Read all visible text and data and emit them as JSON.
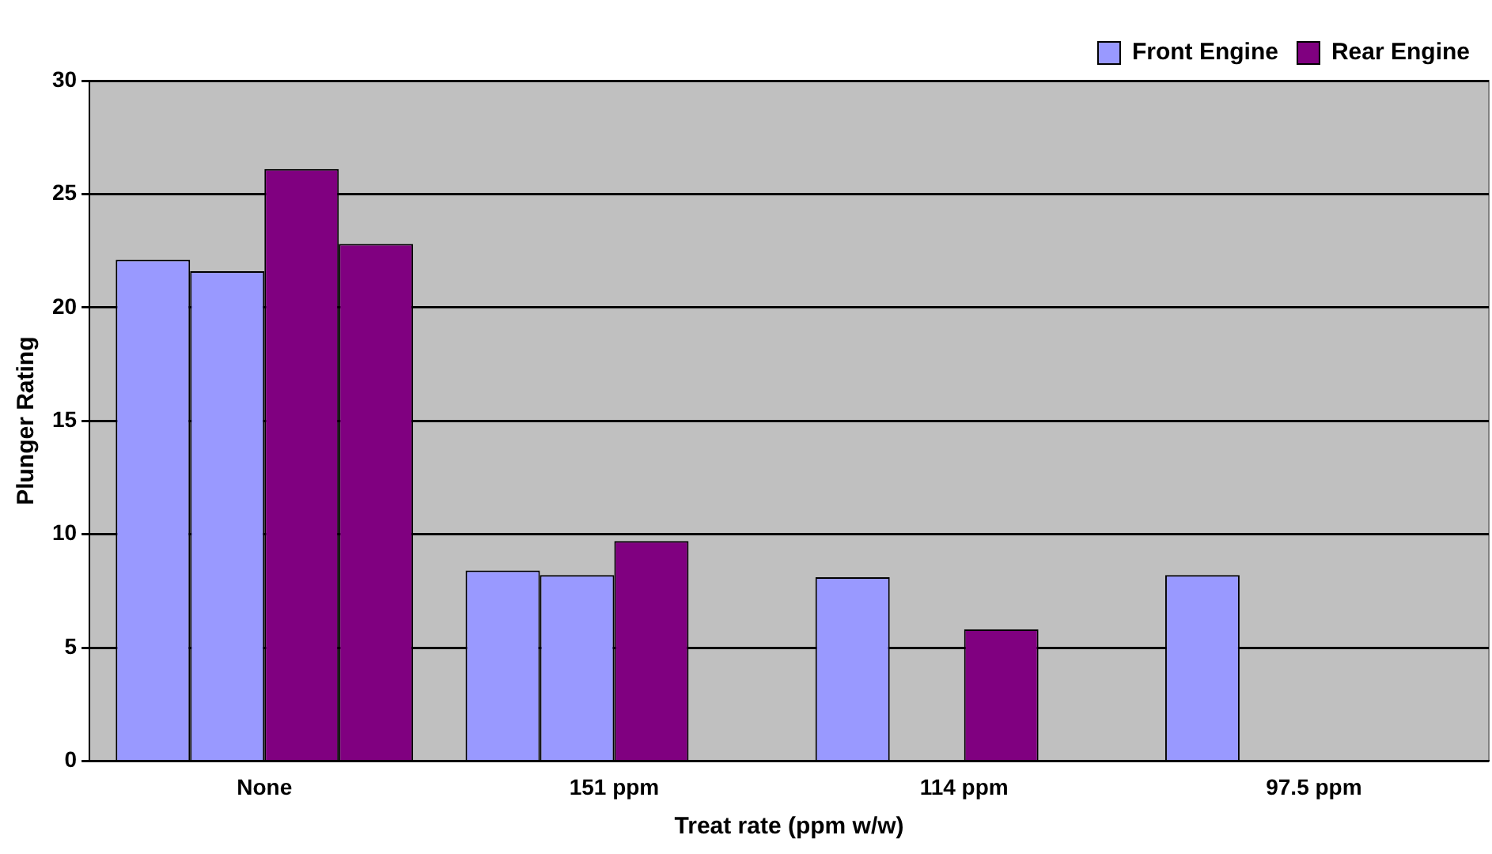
{
  "chart_data": {
    "type": "bar",
    "xlabel": "Treat rate (ppm w/w)",
    "ylabel": "Plunger Rating",
    "categories": [
      "None",
      "151 ppm",
      "114 ppm",
      "97.5 ppm"
    ],
    "series": [
      {
        "name": "Front Engine",
        "color": "#9999ff",
        "values": [
          22.1,
          8.4,
          8.1,
          8.2
        ]
      },
      {
        "color": "#9999ff",
        "values": [
          21.6,
          8.2,
          null,
          null
        ]
      },
      {
        "name": "Rear Engine",
        "color": "#800080",
        "values": [
          26.1,
          9.7,
          5.8,
          null
        ]
      },
      {
        "color": "#800080",
        "values": [
          22.8,
          null,
          null,
          null
        ]
      }
    ],
    "ylim": [
      0,
      30
    ],
    "yticks": [
      0,
      5,
      10,
      15,
      20,
      25,
      30
    ],
    "grid": "y",
    "legend": "top right"
  }
}
